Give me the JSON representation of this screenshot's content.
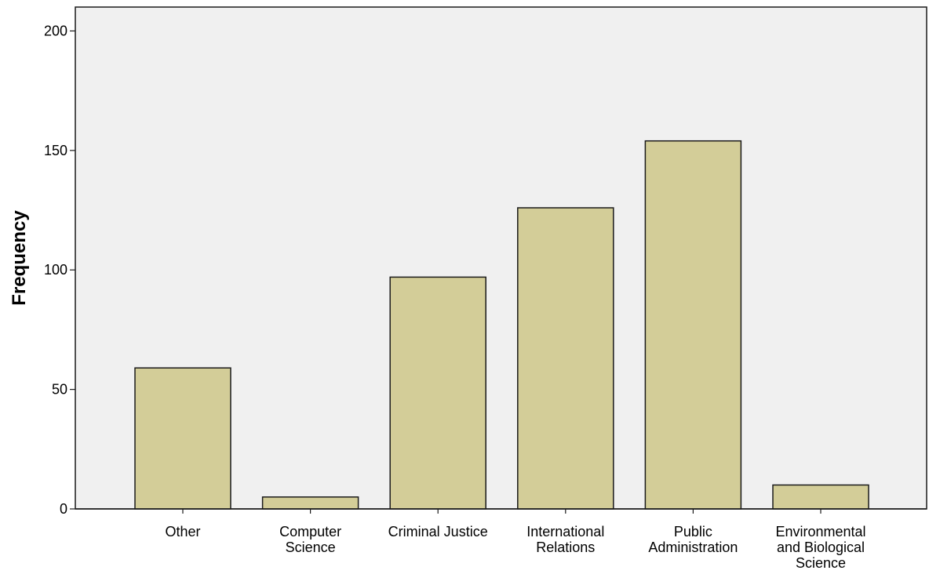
{
  "chart_data": {
    "type": "bar",
    "title": "",
    "xlabel": "",
    "ylabel": "Frequency",
    "categories": [
      [
        "Other"
      ],
      [
        "Computer",
        "Science"
      ],
      [
        "Criminal Justice"
      ],
      [
        "International",
        "Relations"
      ],
      [
        "Public",
        "Administration"
      ],
      [
        "Environmental",
        "and Biological",
        "Science"
      ]
    ],
    "values": [
      59,
      5,
      97,
      126,
      154,
      10
    ],
    "ylim": [
      0,
      210
    ],
    "yticks": [
      0,
      50,
      100,
      150,
      200
    ],
    "grid": false,
    "bar_color": "#d3cd98",
    "bar_edge_color": "#1a1a1a",
    "plot_background": "#f0f0f0"
  }
}
